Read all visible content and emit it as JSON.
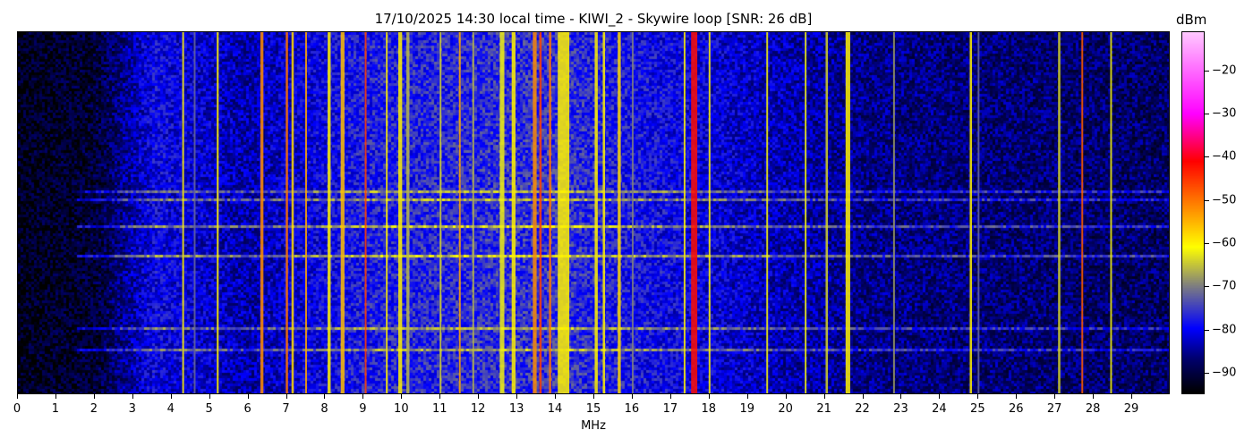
{
  "chart_data": {
    "type": "heatmap",
    "title": "17/10/2025 14:30 local time - KIWI_2 - Skywire loop [SNR: 26 dB]",
    "xlabel": "MHz",
    "xlim": [
      0,
      30
    ],
    "xticks": [
      "0",
      "1",
      "2",
      "3",
      "4",
      "5",
      "6",
      "7",
      "8",
      "9",
      "10",
      "11",
      "12",
      "13",
      "14",
      "15",
      "16",
      "17",
      "18",
      "19",
      "20",
      "21",
      "22",
      "23",
      "24",
      "25",
      "26",
      "27",
      "28",
      "29"
    ],
    "colorbar": {
      "label": "dBm",
      "range": [
        -95,
        -11
      ],
      "ticks": [
        "-20",
        "-30",
        "-40",
        "-50",
        "-60",
        "-70",
        "-80",
        "-90"
      ],
      "tick_values": [
        -20,
        -30,
        -40,
        -50,
        -60,
        -70,
        -80,
        -90
      ],
      "colormap_stops": [
        {
          "value": -95,
          "color": "#000000"
        },
        {
          "value": -87,
          "color": "#00006e"
        },
        {
          "value": -80,
          "color": "#0000ff"
        },
        {
          "value": -70,
          "color": "#7f7f7f"
        },
        {
          "value": -61,
          "color": "#ffff00"
        },
        {
          "value": -51,
          "color": "#ff8000"
        },
        {
          "value": -41,
          "color": "#ff0000"
        },
        {
          "value": -30,
          "color": "#ff00ff"
        },
        {
          "value": -11,
          "color": "#ffc8ff"
        }
      ]
    },
    "noise_floor_dBm": [
      {
        "mhz": 0,
        "level": -93
      },
      {
        "mhz": 2,
        "level": -91
      },
      {
        "mhz": 3.5,
        "level": -80
      },
      {
        "mhz": 6,
        "level": -84
      },
      {
        "mhz": 9,
        "level": -78
      },
      {
        "mhz": 14,
        "level": -76
      },
      {
        "mhz": 17,
        "level": -80
      },
      {
        "mhz": 22,
        "level": -86
      },
      {
        "mhz": 30,
        "level": -88
      }
    ],
    "signals": [
      {
        "mhz": 4.3,
        "level": -60,
        "width": 0.04
      },
      {
        "mhz": 4.6,
        "level": -72,
        "width": 0.03
      },
      {
        "mhz": 5.2,
        "level": -60,
        "width": 0.05
      },
      {
        "mhz": 6.35,
        "level": -52,
        "width": 0.08
      },
      {
        "mhz": 7.0,
        "level": -50,
        "width": 0.06
      },
      {
        "mhz": 7.15,
        "level": -58,
        "width": 0.06
      },
      {
        "mhz": 7.5,
        "level": -54,
        "width": 0.03
      },
      {
        "mhz": 8.1,
        "level": -60,
        "width": 0.08
      },
      {
        "mhz": 8.45,
        "level": -56,
        "width": 0.1
      },
      {
        "mhz": 9.05,
        "level": -46,
        "width": 0.03
      },
      {
        "mhz": 9.6,
        "level": -60,
        "width": 0.04
      },
      {
        "mhz": 9.95,
        "level": -60,
        "width": 0.1
      },
      {
        "mhz": 10.15,
        "level": -66,
        "width": 0.08
      },
      {
        "mhz": 11.0,
        "level": -64,
        "width": 0.04
      },
      {
        "mhz": 11.5,
        "level": -54,
        "width": 0.04
      },
      {
        "mhz": 11.85,
        "level": -66,
        "width": 0.04
      },
      {
        "mhz": 12.6,
        "level": -62,
        "width": 0.12
      },
      {
        "mhz": 12.9,
        "level": -60,
        "width": 0.1
      },
      {
        "mhz": 13.45,
        "level": -52,
        "width": 0.1
      },
      {
        "mhz": 13.6,
        "level": -46,
        "width": 0.06
      },
      {
        "mhz": 13.85,
        "level": -50,
        "width": 0.06
      },
      {
        "mhz": 14.2,
        "level": -60,
        "width": 0.3
      },
      {
        "mhz": 15.05,
        "level": -60,
        "width": 0.08
      },
      {
        "mhz": 15.25,
        "level": -60,
        "width": 0.06
      },
      {
        "mhz": 15.65,
        "level": -58,
        "width": 0.08
      },
      {
        "mhz": 16.0,
        "level": -70,
        "width": 0.04
      },
      {
        "mhz": 17.35,
        "level": -60,
        "width": 0.04
      },
      {
        "mhz": 17.6,
        "level": -42,
        "width": 0.16
      },
      {
        "mhz": 18.0,
        "level": -60,
        "width": 0.04
      },
      {
        "mhz": 19.5,
        "level": -62,
        "width": 0.04
      },
      {
        "mhz": 20.5,
        "level": -62,
        "width": 0.04
      },
      {
        "mhz": 21.05,
        "level": -64,
        "width": 0.06
      },
      {
        "mhz": 21.6,
        "level": -60,
        "width": 0.12
      },
      {
        "mhz": 22.8,
        "level": -68,
        "width": 0.03
      },
      {
        "mhz": 24.8,
        "level": -60,
        "width": 0.06
      },
      {
        "mhz": 25.0,
        "level": -72,
        "width": 0.04
      },
      {
        "mhz": 27.1,
        "level": -64,
        "width": 0.06
      },
      {
        "mhz": 27.7,
        "level": -48,
        "width": 0.03
      },
      {
        "mhz": 28.45,
        "level": -62,
        "width": 0.04
      }
    ]
  }
}
